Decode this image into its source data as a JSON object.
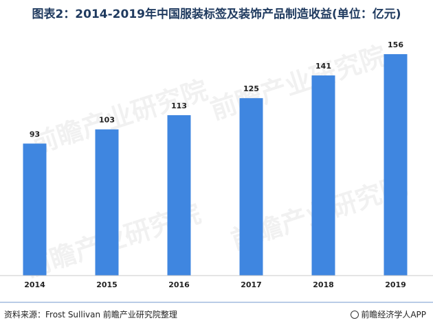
{
  "header": {
    "title": "图表2：2014-2019年中国服装标签及装饰产品制造收益(单位：亿元)"
  },
  "watermark": {
    "text": "前瞻产业研究院"
  },
  "chart_data": {
    "type": "bar",
    "title": "图表2：2014-2019年中国服装标签及装饰产品制造收益(单位：亿元)",
    "categories": [
      "2014",
      "2015",
      "2016",
      "2017",
      "2018",
      "2019"
    ],
    "values": [
      93,
      103,
      113,
      125,
      141,
      156
    ],
    "ylim": [
      0,
      170
    ],
    "grid": false,
    "bar_color": "#3f86e0",
    "data_labels": true
  },
  "footer": {
    "source": "资料来源：Frost Sullivan   前瞻产业研究院整理",
    "brand": "前瞻经济学人APP"
  }
}
